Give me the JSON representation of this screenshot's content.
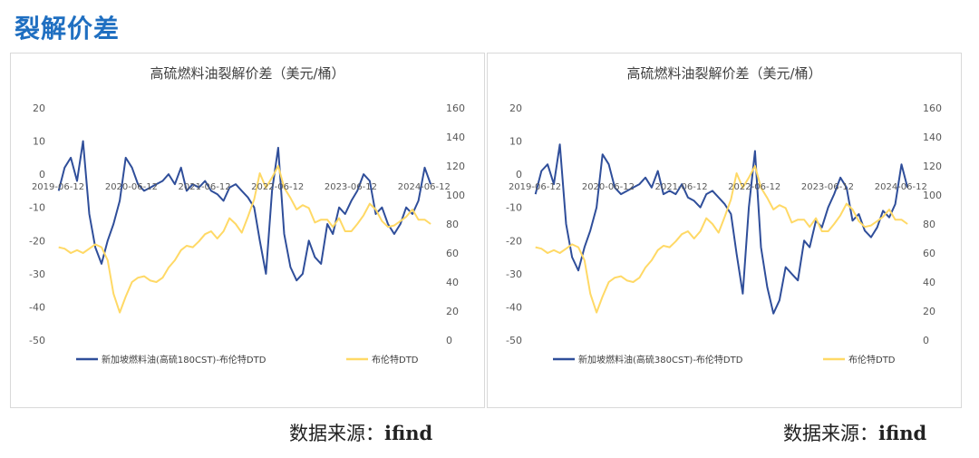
{
  "page": {
    "heading": "裂解价差"
  },
  "colors": {
    "heading": "#1f6fc1",
    "series_fuel": "#2f4e9a",
    "series_brent": "#ffd966"
  },
  "sources": [
    {
      "label": "数据来源：",
      "name": "ifind"
    },
    {
      "label": "数据来源：",
      "name": "ifind"
    }
  ],
  "chart_data": [
    {
      "type": "line",
      "title": "高硫燃料油裂解价差（美元/桶）",
      "y_left": {
        "lim": [
          -50,
          20
        ],
        "ticks": [
          "20",
          "10",
          "0",
          "-10",
          "-20",
          "-30",
          "-40",
          "-50"
        ]
      },
      "y_right": {
        "lim": [
          0,
          160
        ],
        "ticks": [
          "160",
          "140",
          "120",
          "100",
          "80",
          "60",
          "40",
          "20",
          "0"
        ]
      },
      "x_lim": [
        "2019-06-12",
        "2024-07-10"
      ],
      "x_labels": [
        "2019-06-12",
        "2020-06-12",
        "2021-06-12",
        "2022-06-12",
        "2023-06-12",
        "2024-06-12"
      ],
      "grid": false,
      "legend_position": "bottom",
      "series": [
        {
          "name": "新加坡燃料油(高硫180CST)-布伦特DTD",
          "axis": "left",
          "x": [
            "2019-06",
            "2019-07",
            "2019-08",
            "2019-09",
            "2019-10",
            "2019-11",
            "2019-12",
            "2020-01",
            "2020-02",
            "2020-03",
            "2020-04",
            "2020-05",
            "2020-06",
            "2020-07",
            "2020-08",
            "2020-09",
            "2020-10",
            "2020-11",
            "2020-12",
            "2021-01",
            "2021-02",
            "2021-03",
            "2021-04",
            "2021-05",
            "2021-06",
            "2021-07",
            "2021-08",
            "2021-09",
            "2021-10",
            "2021-11",
            "2021-12",
            "2022-01",
            "2022-02",
            "2022-03",
            "2022-04",
            "2022-05",
            "2022-06",
            "2022-07",
            "2022-08",
            "2022-09",
            "2022-10",
            "2022-11",
            "2022-12",
            "2023-01",
            "2023-02",
            "2023-03",
            "2023-04",
            "2023-05",
            "2023-06",
            "2023-07",
            "2023-08",
            "2023-09",
            "2023-10",
            "2023-11",
            "2023-12",
            "2024-01",
            "2024-02",
            "2024-03",
            "2024-04",
            "2024-05",
            "2024-06",
            "2024-07"
          ],
          "values": [
            -5,
            2,
            5,
            -2,
            10,
            -12,
            -22,
            -27,
            -20,
            -15,
            -8,
            5,
            2,
            -3,
            -5,
            -4,
            -3,
            -2,
            0,
            -3,
            2,
            -5,
            -3,
            -4,
            -2,
            -5,
            -6,
            -8,
            -4,
            -3,
            -5,
            -7,
            -10,
            -20,
            -30,
            -5,
            8,
            -18,
            -28,
            -32,
            -30,
            -20,
            -25,
            -27,
            -15,
            -18,
            -10,
            -12,
            -8,
            -5,
            0,
            -2,
            -12,
            -10,
            -15,
            -18,
            -15,
            -10,
            -12,
            -8,
            2,
            -3
          ]
        },
        {
          "name": "布伦特DTD",
          "axis": "right",
          "x": [
            "2019-06",
            "2019-07",
            "2019-08",
            "2019-09",
            "2019-10",
            "2019-11",
            "2019-12",
            "2020-01",
            "2020-02",
            "2020-03",
            "2020-04",
            "2020-05",
            "2020-06",
            "2020-07",
            "2020-08",
            "2020-09",
            "2020-10",
            "2020-11",
            "2020-12",
            "2021-01",
            "2021-02",
            "2021-03",
            "2021-04",
            "2021-05",
            "2021-06",
            "2021-07",
            "2021-08",
            "2021-09",
            "2021-10",
            "2021-11",
            "2021-12",
            "2022-01",
            "2022-02",
            "2022-03",
            "2022-04",
            "2022-05",
            "2022-06",
            "2022-07",
            "2022-08",
            "2022-09",
            "2022-10",
            "2022-11",
            "2022-12",
            "2023-01",
            "2023-02",
            "2023-03",
            "2023-04",
            "2023-05",
            "2023-06",
            "2023-07",
            "2023-08",
            "2023-09",
            "2023-10",
            "2023-11",
            "2023-12",
            "2024-01",
            "2024-02",
            "2024-03",
            "2024-04",
            "2024-05",
            "2024-06",
            "2024-07"
          ],
          "values": [
            64,
            63,
            60,
            62,
            60,
            63,
            66,
            64,
            55,
            32,
            19,
            30,
            40,
            43,
            44,
            41,
            40,
            43,
            50,
            55,
            62,
            65,
            64,
            68,
            73,
            75,
            70,
            75,
            84,
            80,
            74,
            85,
            97,
            115,
            105,
            112,
            120,
            105,
            98,
            90,
            93,
            91,
            81,
            83,
            83,
            78,
            84,
            75,
            75,
            80,
            86,
            94,
            90,
            82,
            78,
            79,
            82,
            85,
            90,
            83,
            83,
            80
          ]
        }
      ]
    },
    {
      "type": "line",
      "title": "高硫燃料油裂解价差（美元/桶）",
      "y_left": {
        "lim": [
          -50,
          20
        ],
        "ticks": [
          "20",
          "10",
          "0",
          "-10",
          "-20",
          "-30",
          "-40",
          "-50"
        ]
      },
      "y_right": {
        "lim": [
          0,
          160
        ],
        "ticks": [
          "160",
          "140",
          "120",
          "100",
          "80",
          "60",
          "40",
          "20",
          "0"
        ]
      },
      "x_lim": [
        "2019-06-12",
        "2024-07-10"
      ],
      "x_labels": [
        "2019-06-12",
        "2020-06-12",
        "2021-06-12",
        "2022-06-12",
        "2023-06-12",
        "2024-06-12"
      ],
      "grid": false,
      "legend_position": "bottom",
      "series": [
        {
          "name": "新加坡燃料油(高硫380CST)-布伦特DTD",
          "axis": "left",
          "x": [
            "2019-06",
            "2019-07",
            "2019-08",
            "2019-09",
            "2019-10",
            "2019-11",
            "2019-12",
            "2020-01",
            "2020-02",
            "2020-03",
            "2020-04",
            "2020-05",
            "2020-06",
            "2020-07",
            "2020-08",
            "2020-09",
            "2020-10",
            "2020-11",
            "2020-12",
            "2021-01",
            "2021-02",
            "2021-03",
            "2021-04",
            "2021-05",
            "2021-06",
            "2021-07",
            "2021-08",
            "2021-09",
            "2021-10",
            "2021-11",
            "2021-12",
            "2022-01",
            "2022-02",
            "2022-03",
            "2022-04",
            "2022-05",
            "2022-06",
            "2022-07",
            "2022-08",
            "2022-09",
            "2022-10",
            "2022-11",
            "2022-12",
            "2023-01",
            "2023-02",
            "2023-03",
            "2023-04",
            "2023-05",
            "2023-06",
            "2023-07",
            "2023-08",
            "2023-09",
            "2023-10",
            "2023-11",
            "2023-12",
            "2024-01",
            "2024-02",
            "2024-03",
            "2024-04",
            "2024-05",
            "2024-06",
            "2024-07"
          ],
          "values": [
            -6,
            1,
            3,
            -3,
            9,
            -15,
            -25,
            -29,
            -22,
            -17,
            -10,
            6,
            3,
            -4,
            -6,
            -5,
            -4,
            -3,
            -1,
            -4,
            1,
            -6,
            -5,
            -6,
            -3,
            -7,
            -8,
            -10,
            -6,
            -5,
            -7,
            -9,
            -12,
            -24,
            -36,
            -10,
            7,
            -22,
            -34,
            -42,
            -38,
            -28,
            -30,
            -32,
            -20,
            -22,
            -14,
            -16,
            -10,
            -6,
            -1,
            -4,
            -14,
            -12,
            -17,
            -19,
            -16,
            -11,
            -13,
            -9,
            3,
            -4
          ]
        },
        {
          "name": "布伦特DTD",
          "axis": "right",
          "x": [
            "2019-06",
            "2019-07",
            "2019-08",
            "2019-09",
            "2019-10",
            "2019-11",
            "2019-12",
            "2020-01",
            "2020-02",
            "2020-03",
            "2020-04",
            "2020-05",
            "2020-06",
            "2020-07",
            "2020-08",
            "2020-09",
            "2020-10",
            "2020-11",
            "2020-12",
            "2021-01",
            "2021-02",
            "2021-03",
            "2021-04",
            "2021-05",
            "2021-06",
            "2021-07",
            "2021-08",
            "2021-09",
            "2021-10",
            "2021-11",
            "2021-12",
            "2022-01",
            "2022-02",
            "2022-03",
            "2022-04",
            "2022-05",
            "2022-06",
            "2022-07",
            "2022-08",
            "2022-09",
            "2022-10",
            "2022-11",
            "2022-12",
            "2023-01",
            "2023-02",
            "2023-03",
            "2023-04",
            "2023-05",
            "2023-06",
            "2023-07",
            "2023-08",
            "2023-09",
            "2023-10",
            "2023-11",
            "2023-12",
            "2024-01",
            "2024-02",
            "2024-03",
            "2024-04",
            "2024-05",
            "2024-06",
            "2024-07"
          ],
          "values": [
            64,
            63,
            60,
            62,
            60,
            63,
            66,
            64,
            55,
            32,
            19,
            30,
            40,
            43,
            44,
            41,
            40,
            43,
            50,
            55,
            62,
            65,
            64,
            68,
            73,
            75,
            70,
            75,
            84,
            80,
            74,
            85,
            97,
            115,
            105,
            112,
            120,
            105,
            98,
            90,
            93,
            91,
            81,
            83,
            83,
            78,
            84,
            75,
            75,
            80,
            86,
            94,
            90,
            82,
            78,
            79,
            82,
            85,
            90,
            83,
            83,
            80
          ]
        }
      ]
    }
  ]
}
